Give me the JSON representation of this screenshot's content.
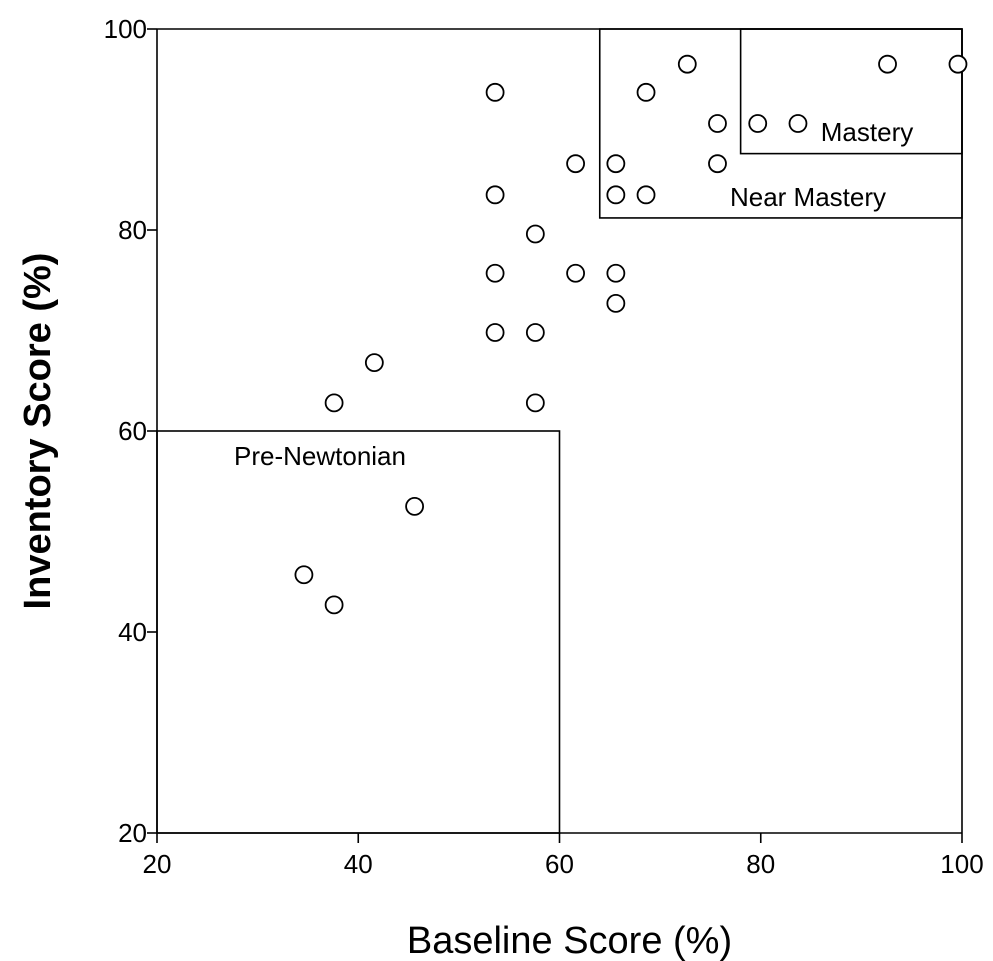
{
  "chart_data": {
    "type": "scatter",
    "title": "",
    "xlabel": "Baseline Score (%)",
    "ylabel": "Inventory Score (%)",
    "xlim": [
      20,
      100
    ],
    "ylim": [
      20,
      100
    ],
    "xticks": [
      20,
      40,
      60,
      80,
      100
    ],
    "yticks": [
      20,
      40,
      60,
      80,
      100
    ],
    "xtick_labels": [
      "20",
      "40",
      "60",
      "80",
      "100"
    ],
    "ytick_labels": [
      "20",
      "40",
      "60",
      "80",
      "100"
    ],
    "grid": false,
    "legend": "none",
    "points": [
      {
        "x": 34.6,
        "y": 45.7
      },
      {
        "x": 37.6,
        "y": 42.7
      },
      {
        "x": 45.6,
        "y": 52.5
      },
      {
        "x": 37.6,
        "y": 62.8
      },
      {
        "x": 41.6,
        "y": 66.8
      },
      {
        "x": 53.6,
        "y": 93.7
      },
      {
        "x": 53.6,
        "y": 83.5
      },
      {
        "x": 53.6,
        "y": 75.7
      },
      {
        "x": 53.6,
        "y": 69.8
      },
      {
        "x": 57.6,
        "y": 79.6
      },
      {
        "x": 57.6,
        "y": 69.8
      },
      {
        "x": 57.6,
        "y": 62.8
      },
      {
        "x": 61.6,
        "y": 86.6
      },
      {
        "x": 61.6,
        "y": 75.7
      },
      {
        "x": 65.6,
        "y": 86.6
      },
      {
        "x": 65.6,
        "y": 83.5
      },
      {
        "x": 65.6,
        "y": 75.7
      },
      {
        "x": 65.6,
        "y": 72.7
      },
      {
        "x": 68.6,
        "y": 93.7
      },
      {
        "x": 68.6,
        "y": 83.5
      },
      {
        "x": 72.7,
        "y": 96.5
      },
      {
        "x": 75.7,
        "y": 90.6
      },
      {
        "x": 75.7,
        "y": 86.6
      },
      {
        "x": 79.7,
        "y": 90.6
      },
      {
        "x": 83.7,
        "y": 90.6
      },
      {
        "x": 92.6,
        "y": 96.5
      },
      {
        "x": 99.6,
        "y": 96.5
      }
    ],
    "regions": [
      {
        "label": "Pre-Newtonian",
        "x": [
          20,
          60
        ],
        "y": [
          20,
          60
        ]
      },
      {
        "label": "Near Mastery",
        "x": [
          64,
          100
        ],
        "y": [
          81.2,
          100
        ]
      },
      {
        "label": "Mastery",
        "x": [
          78,
          100
        ],
        "y": [
          87.6,
          100
        ]
      }
    ]
  }
}
